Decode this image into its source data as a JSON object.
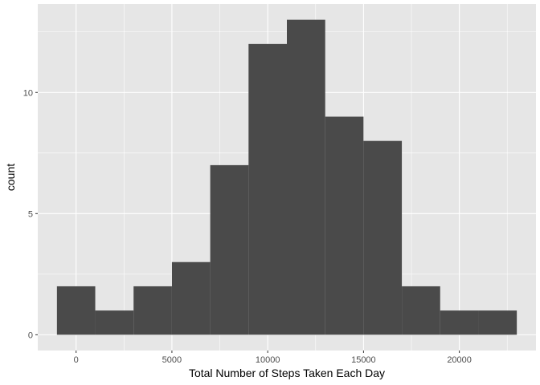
{
  "chart_data": {
    "type": "bar",
    "xlabel": "Total Number of Steps Taken Each Day",
    "ylabel": "count",
    "xlim": [
      -2000,
      24000
    ],
    "ylim": [
      -0.65,
      13.65
    ],
    "x_ticks": [
      {
        "value": 0,
        "label": "0"
      },
      {
        "value": 5000,
        "label": "5000"
      },
      {
        "value": 10000,
        "label": "10000"
      },
      {
        "value": 15000,
        "label": "15000"
      },
      {
        "value": 20000,
        "label": "20000"
      }
    ],
    "y_ticks": [
      {
        "value": 0,
        "label": "0"
      },
      {
        "value": 5,
        "label": "5"
      },
      {
        "value": 10,
        "label": "10"
      }
    ],
    "bins": [
      {
        "x0": -1000,
        "x1": 1000,
        "count": 2
      },
      {
        "x0": 1000,
        "x1": 3000,
        "count": 1
      },
      {
        "x0": 3000,
        "x1": 5000,
        "count": 2
      },
      {
        "x0": 5000,
        "x1": 7000,
        "count": 3
      },
      {
        "x0": 7000,
        "x1": 9000,
        "count": 7
      },
      {
        "x0": 9000,
        "x1": 11000,
        "count": 12
      },
      {
        "x0": 11000,
        "x1": 13000,
        "count": 13
      },
      {
        "x0": 13000,
        "x1": 15000,
        "count": 9
      },
      {
        "x0": 15000,
        "x1": 17000,
        "count": 8
      },
      {
        "x0": 17000,
        "x1": 19000,
        "count": 2
      },
      {
        "x0": 19000,
        "x1": 21000,
        "count": 1
      },
      {
        "x0": 21000,
        "x1": 23000,
        "count": 1
      }
    ],
    "bar_color": "#4a4a4a",
    "panel_background": "#e6e6e6",
    "grid": true,
    "grid_color": "#ffffff"
  }
}
